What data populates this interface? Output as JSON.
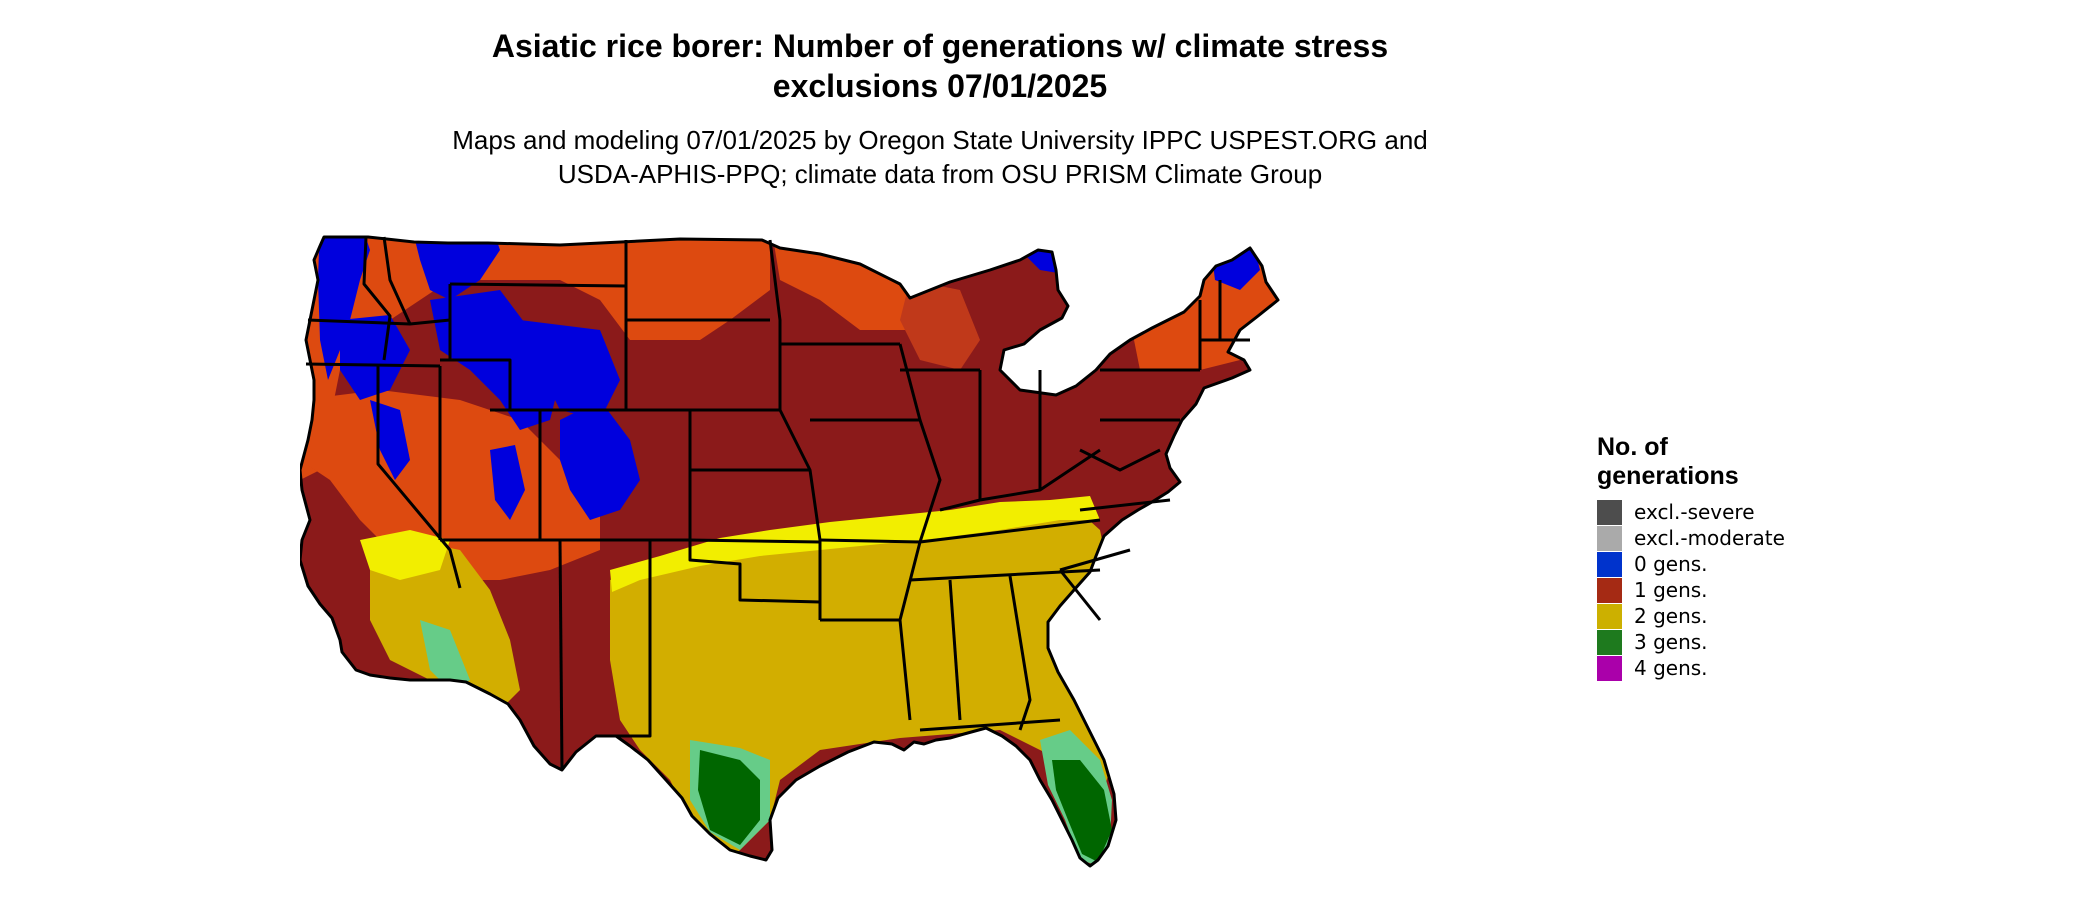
{
  "title": {
    "line1": "Asiatic rice borer: Number of generations w/ climate stress",
    "line2": "exclusions 07/01/2025"
  },
  "subtitle": {
    "line1": "Maps and modeling 07/01/2025 by Oregon State University IPPC USPEST.ORG and",
    "line2": "USDA-APHIS-PPQ; climate data from OSU PRISM Climate Group"
  },
  "legend": {
    "title_line1": "No. of",
    "title_line2": "generations",
    "items": [
      {
        "label": "excl.-severe",
        "color": "#4d4d4d"
      },
      {
        "label": "excl.-moderate",
        "color": "#aaaaaa"
      },
      {
        "label": "0 gens.",
        "color": "#0033cc"
      },
      {
        "label": "1 gens.",
        "color": "#a52a14"
      },
      {
        "label": "2 gens.",
        "color": "#ccb000"
      },
      {
        "label": "3 gens.",
        "color": "#1e7a1e"
      },
      {
        "label": "4 gens.",
        "color": "#aa00aa"
      }
    ]
  },
  "map": {
    "region": "Contiguous United States",
    "colors": {
      "zero_gens": "#0000dd",
      "one_gen_dark": "#8b1a1a",
      "one_gen_orange": "#dd4a10",
      "two_gens": "#d2ae00",
      "two_gens_yellow": "#f2ee00",
      "three_gens": "#006600",
      "three_gens_light": "#66cc88",
      "state_lines": "#000000"
    }
  }
}
